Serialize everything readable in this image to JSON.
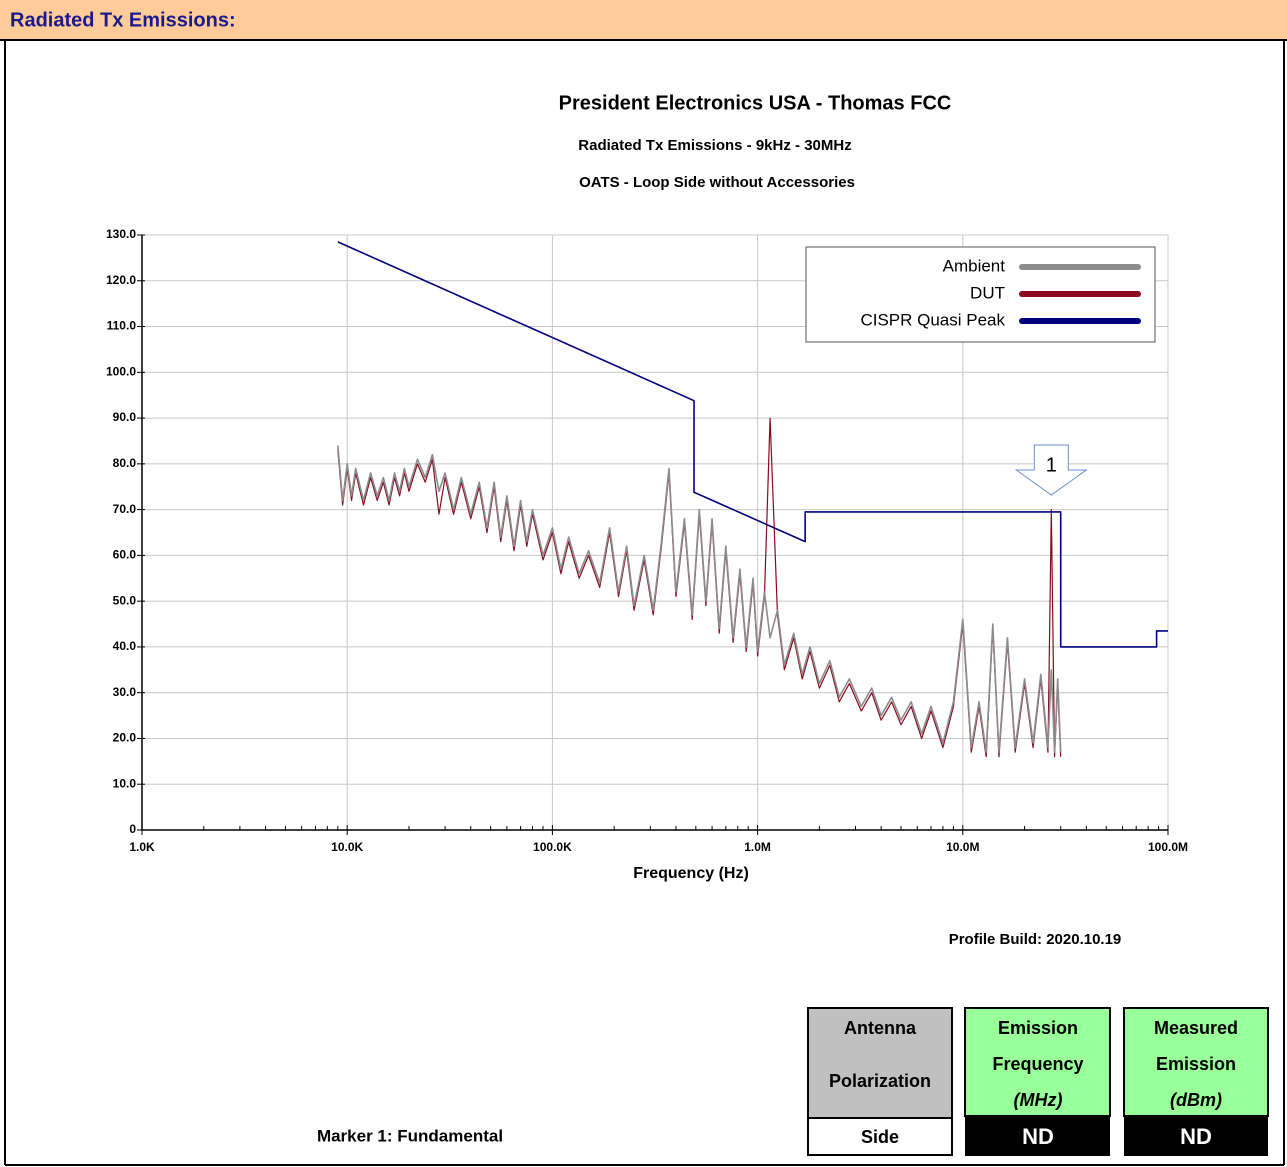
{
  "header": {
    "title": "Radiated Tx Emissions:"
  },
  "chart_data": {
    "type": "line",
    "title": "President Electronics USA - Thomas FCC",
    "subtitle": "Radiated Tx Emissions - 9kHz - 30MHz",
    "subtitle2": "OATS - Loop Side without Accessories",
    "xlabel": "Frequency (Hz)",
    "log_x": true,
    "grid": true,
    "legend": "upper right",
    "xlim": [
      1000,
      100000000
    ],
    "xticks": [
      {
        "value": 1000,
        "label": "1.0K"
      },
      {
        "value": 10000,
        "label": "10.0K"
      },
      {
        "value": 100000,
        "label": "100.0K"
      },
      {
        "value": 1000000,
        "label": "1.0M"
      },
      {
        "value": 10000000,
        "label": "10.0M"
      },
      {
        "value": 100000000,
        "label": "100.0M"
      }
    ],
    "ylim": [
      0,
      130
    ],
    "yticks": [
      0,
      {
        "value": 10,
        "label": "10.0"
      },
      {
        "value": 20,
        "label": "20.0"
      },
      {
        "value": 30,
        "label": "30.0"
      },
      {
        "value": 40,
        "label": "40.0"
      },
      {
        "value": 50,
        "label": "50.0"
      },
      {
        "value": 60,
        "label": "60.0"
      },
      {
        "value": 70,
        "label": "70.0"
      },
      {
        "value": 80,
        "label": "80.0"
      },
      {
        "value": 90,
        "label": "90.0"
      },
      {
        "value": 100,
        "label": "100.0"
      },
      {
        "value": 110,
        "label": "110.0"
      },
      {
        "value": 120,
        "label": "120.0"
      },
      {
        "value": 130,
        "label": "130.0"
      }
    ],
    "x": [
      9000,
      9500,
      10000,
      10500,
      11000,
      12000,
      13000,
      14000,
      15000,
      16000,
      17000,
      18000,
      19000,
      20000,
      22000,
      24000,
      26000,
      28000,
      30000,
      33000,
      36000,
      40000,
      44000,
      48000,
      52000,
      56000,
      60000,
      65000,
      70000,
      75000,
      80000,
      90000,
      100000,
      110000,
      120000,
      135000,
      150000,
      170000,
      190000,
      210000,
      230000,
      250000,
      280000,
      310000,
      340000,
      370000,
      400000,
      440000,
      480000,
      520000,
      560000,
      600000,
      650000,
      700000,
      760000,
      820000,
      880000,
      950000,
      1000000,
      1080000,
      1150000,
      1250000,
      1350000,
      1500000,
      1650000,
      1800000,
      2000000,
      2250000,
      2500000,
      2800000,
      3200000,
      3600000,
      4000000,
      4500000,
      5000000,
      5600000,
      6300000,
      7000000,
      8000000,
      9000000,
      10000000,
      11000000,
      12000000,
      13000000,
      14000000,
      15000000,
      16500000,
      18000000,
      20000000,
      22000000,
      24000000,
      26000000,
      27000000,
      28000000,
      29000000,
      30000000
    ],
    "series": [
      {
        "name": "Ambient",
        "color": "#8c8c8c",
        "values": [
          84,
          72,
          80,
          73,
          79,
          72,
          78,
          73,
          77,
          72,
          78,
          74,
          79,
          75,
          81,
          77,
          82,
          74,
          78,
          70,
          77,
          69,
          76,
          66,
          76,
          64,
          73,
          62,
          72,
          63,
          70,
          60,
          66,
          57,
          64,
          56,
          61,
          54,
          66,
          52,
          62,
          49,
          60,
          48,
          63,
          79,
          52,
          68,
          47,
          70,
          50,
          68,
          44,
          62,
          42,
          57,
          40,
          55,
          39,
          52,
          42,
          48,
          36,
          43,
          34,
          40,
          32,
          37,
          29,
          33,
          27,
          31,
          25,
          29,
          24,
          28,
          21,
          27,
          19,
          28,
          46,
          18,
          28,
          17,
          45,
          17,
          42,
          18,
          33,
          19,
          34,
          18,
          35,
          17,
          33,
          17
        ]
      },
      {
        "name": "DUT",
        "color": "#8b0a1e",
        "values": [
          83,
          71,
          79,
          72,
          78,
          71,
          77,
          72,
          76,
          71,
          77,
          73,
          78,
          74,
          80,
          76,
          81,
          69,
          77,
          69,
          76,
          68,
          75,
          65,
          75,
          63,
          72,
          61,
          71,
          62,
          69,
          59,
          65,
          56,
          63,
          55,
          60,
          53,
          65,
          51,
          61,
          48,
          59,
          47,
          62,
          78,
          51,
          67,
          46,
          69,
          49,
          67,
          43,
          61,
          41,
          56,
          39,
          54,
          38,
          51,
          90,
          47,
          35,
          42,
          33,
          39,
          31,
          36,
          28,
          32,
          26,
          30,
          24,
          28,
          23,
          27,
          20,
          26,
          18,
          27,
          45,
          17,
          27,
          16,
          44,
          16,
          41,
          17,
          32,
          18,
          33,
          17,
          70,
          16,
          32,
          16
        ]
      },
      {
        "name": "CISPR Quasi Peak",
        "color": "#00007f",
        "x": [
          9000,
          490000,
          490000,
          1705000,
          1705000,
          30000000,
          30000000,
          88000000,
          88000000,
          100000000
        ],
        "values": [
          128.5,
          93.8,
          73.8,
          63,
          69.5,
          69.5,
          40,
          40,
          43.5,
          43.5
        ]
      }
    ],
    "markers": [
      {
        "label": "1",
        "x": 27000000
      }
    ]
  },
  "footer": {
    "profile": "Profile Build: 2020.10.19",
    "marker_note": "Marker 1: Fundamental"
  },
  "table": {
    "headers": [
      [
        "Antenna",
        "Polarization"
      ],
      [
        "Emission",
        "Frequency",
        "(MHz)"
      ],
      [
        "Measured",
        "Emission",
        "(dBm)"
      ]
    ],
    "values": [
      "Side",
      "ND",
      "ND"
    ]
  }
}
